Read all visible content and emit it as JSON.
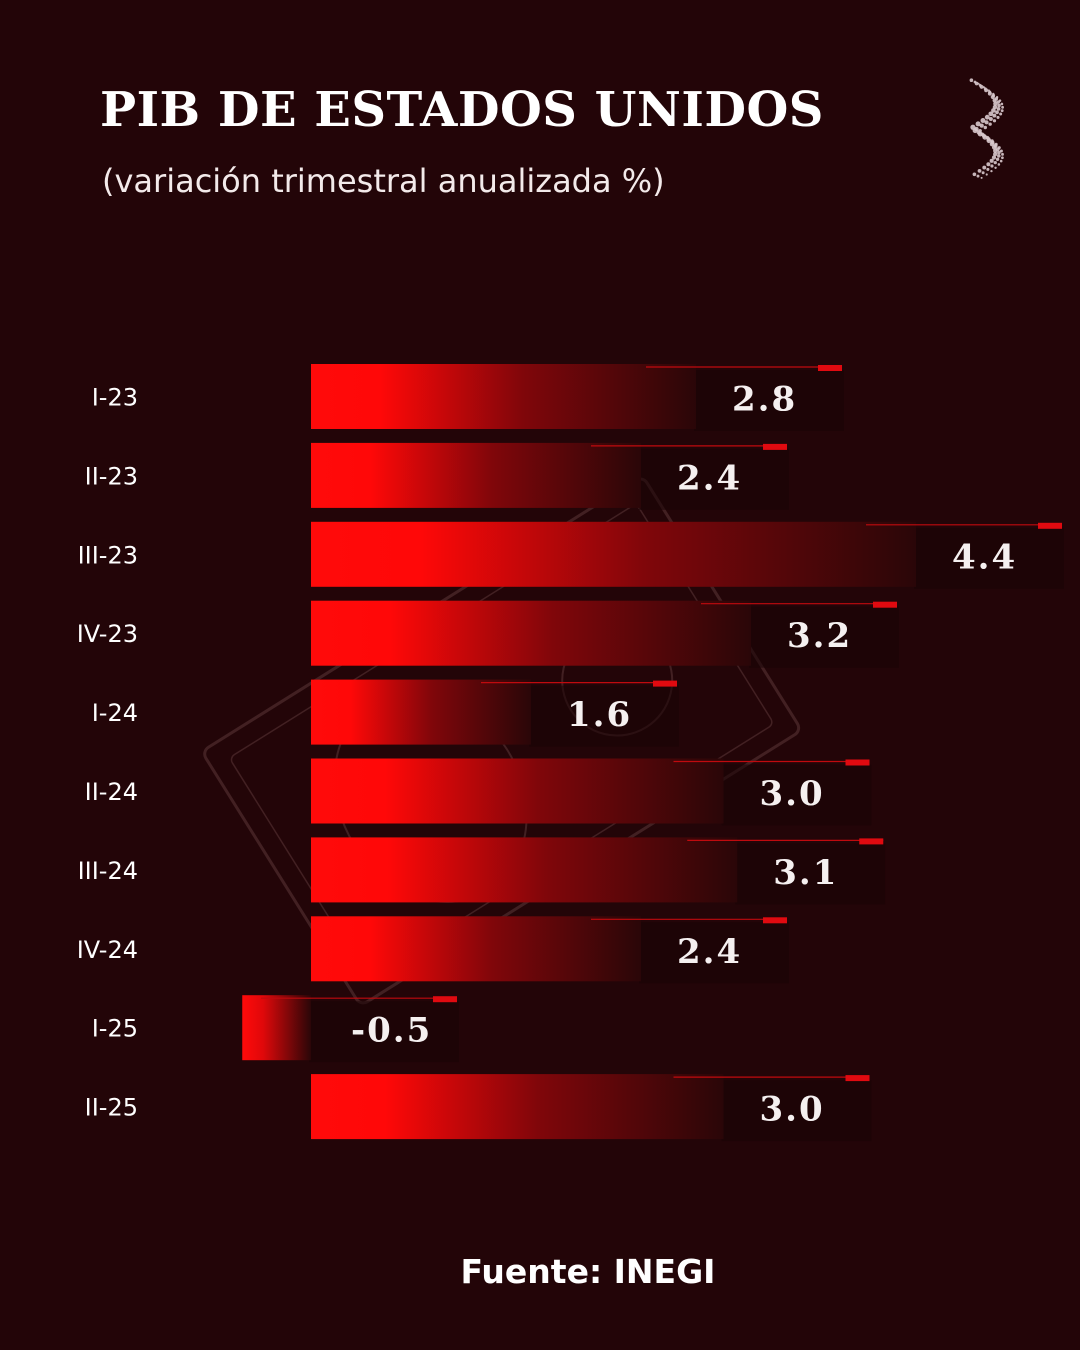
{
  "colors": {
    "background": "#230508",
    "bar_bright": "#ff0a0a",
    "bar_dark": "#2a0608",
    "accent": "#e00a10"
  },
  "logo": {
    "icon": "dotted-s-logo-icon"
  },
  "chart_data": {
    "type": "bar",
    "orientation": "horizontal",
    "title": "PIB DE ESTADOS UNIDOS",
    "subtitle": "(variación trimestral anualizada %)",
    "categories": [
      "I-23",
      "II-23",
      "III-23",
      "IV-23",
      "I-24",
      "II-24",
      "III-24",
      "IV-24",
      "I-25",
      "II-25"
    ],
    "values": [
      2.8,
      2.4,
      4.4,
      3.2,
      1.6,
      3.0,
      3.1,
      2.4,
      -0.5,
      3.0
    ],
    "value_labels": [
      "2.8",
      "2.4",
      "4.4",
      "3.2",
      "1.6",
      "3.0",
      "3.1",
      "2.4",
      "-0.5",
      "3.0"
    ],
    "xlim": [
      -0.7,
      4.4
    ],
    "grid": false,
    "legend": "none"
  },
  "footer": {
    "source": "Fuente: INEGI"
  }
}
